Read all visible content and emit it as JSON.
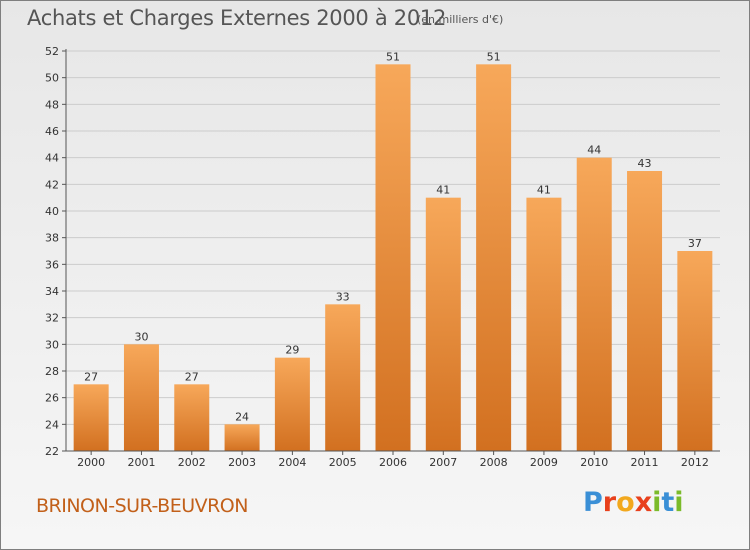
{
  "title": "Achats et Charges Externes 2000 à 2012",
  "subtitle": "(en milliers d'€)",
  "commune": "BRINON-SUR-BEUVRON",
  "brand": {
    "letters": [
      "P",
      "r",
      "o",
      "x",
      "i",
      "t",
      "i"
    ],
    "colors": [
      "#3a8fd6",
      "#e8401c",
      "#f2a81d",
      "#e8401c",
      "#7bbb2a",
      "#3a8fd6",
      "#7bbb2a"
    ]
  },
  "colors": {
    "bar_light": "#f7a85a",
    "bar_dark": "#d27020",
    "grid": "#cccccc",
    "axis": "#555555"
  },
  "chart_data": {
    "type": "bar",
    "categories": [
      "2000",
      "2001",
      "2002",
      "2003",
      "2004",
      "2005",
      "2006",
      "2007",
      "2008",
      "2009",
      "2010",
      "2011",
      "2012"
    ],
    "values": [
      27,
      30,
      27,
      24,
      29,
      33,
      51,
      41,
      51,
      41,
      44,
      43,
      37
    ],
    "ylim": [
      22,
      52
    ],
    "yticks": [
      22,
      24,
      26,
      28,
      30,
      32,
      34,
      36,
      38,
      40,
      42,
      44,
      46,
      48,
      50,
      52
    ],
    "grid": true,
    "xlabel": "",
    "ylabel": ""
  }
}
